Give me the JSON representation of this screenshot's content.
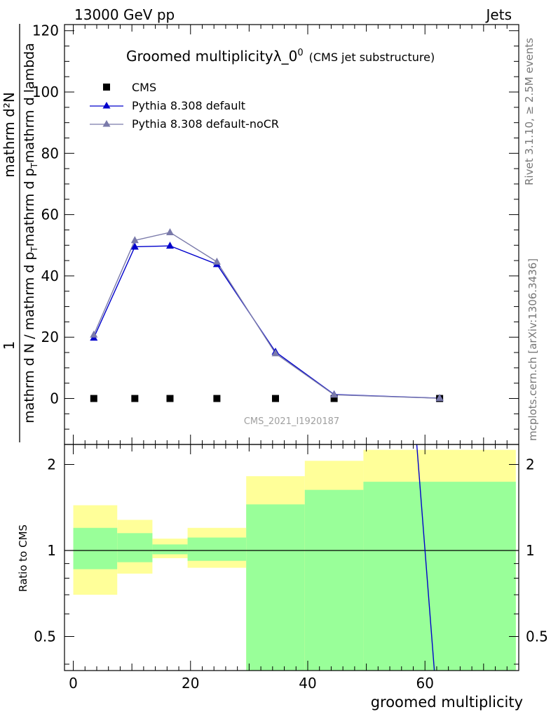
{
  "header": {
    "left": "13000 GeV pp",
    "right": "Jets",
    "side_top": "Rivet 3.1.10, ≥ 2.5M events",
    "side_bottom": "mcplots.cern.ch [arXiv:1306.3436]"
  },
  "main": {
    "title": "Groomed multiplicityλ_0",
    "title_sup": "0",
    "title_note": "(CMS jet substructure)",
    "ylabel_num_prefix": "1",
    "ylabel_num": "mathrm d²N",
    "ylabel_den": "mathrm d N / mathrm d p",
    "ylabel_den_sub": "T",
    "ylabel_den_mid": "mathrm d p",
    "ylabel_den_sub2": "T",
    "ylabel_den_end": "mathrm d lambda",
    "watermark": "CMS_2021_I1920187"
  },
  "ratio": {
    "ylabel": "Ratio to CMS",
    "xlabel": "groomed multiplicity"
  },
  "legend": [
    {
      "label": "CMS"
    },
    {
      "label": "Pythia 8.308 default"
    },
    {
      "label": "Pythia 8.308 default-noCR"
    }
  ],
  "chart_data": {
    "type": "line",
    "xlim": [
      -1.5,
      76
    ],
    "ylim": [
      -15,
      122
    ],
    "yticks": [
      0,
      20,
      40,
      60,
      80,
      100,
      120
    ],
    "xticks": [
      0,
      20,
      40,
      60
    ],
    "ratio_ylim": [
      0.38,
      2.35
    ],
    "ratio_yticks": [
      0.5,
      1,
      2
    ],
    "series": [
      {
        "name": "CMS",
        "color": "#000000",
        "marker": "square",
        "x": [
          3.5,
          10.5,
          16.5,
          24.5,
          34.5,
          44.5,
          62.5
        ],
        "y": [
          0,
          0,
          0,
          0,
          0,
          0,
          0
        ]
      },
      {
        "name": "Pythia 8.308 default",
        "color": "#0000cc",
        "marker": "triangle",
        "x": [
          3.5,
          10.5,
          16.5,
          24.5,
          34.5,
          44.5,
          62.5
        ],
        "y": [
          19.8,
          49.5,
          49.8,
          43.8,
          15.2,
          1.3,
          0.1
        ]
      },
      {
        "name": "Pythia 8.308 default-noCR",
        "color": "#7a7aaa",
        "marker": "triangle",
        "x": [
          3.5,
          10.5,
          16.5,
          24.5,
          34.5,
          44.5,
          62.5
        ],
        "y": [
          20.8,
          51.6,
          54.2,
          44.6,
          14.7,
          1.2,
          0.08
        ]
      }
    ],
    "bands": [
      {
        "x0": 0,
        "x1": 7.5,
        "inner": [
          0.86,
          1.2
        ],
        "outer": [
          0.7,
          1.44
        ]
      },
      {
        "x0": 7.5,
        "x1": 13.5,
        "inner": [
          0.91,
          1.15
        ],
        "outer": [
          0.83,
          1.28
        ]
      },
      {
        "x0": 13.5,
        "x1": 19.5,
        "inner": [
          0.97,
          1.05
        ],
        "outer": [
          0.94,
          1.1
        ]
      },
      {
        "x0": 19.5,
        "x1": 29.5,
        "inner": [
          0.92,
          1.11
        ],
        "outer": [
          0.87,
          1.2
        ]
      },
      {
        "x0": 29.5,
        "x1": 39.5,
        "inner": [
          0.38,
          1.45
        ],
        "outer": [
          0.38,
          1.82
        ]
      },
      {
        "x0": 39.5,
        "x1": 49.5,
        "inner": [
          0.38,
          1.63
        ],
        "outer": [
          0.38,
          2.06
        ]
      },
      {
        "x0": 49.5,
        "x1": 75.5,
        "inner": [
          0.38,
          1.74
        ],
        "outer": [
          0.38,
          2.25
        ]
      }
    ],
    "ratio_line": {
      "x": [
        58.6,
        61.6
      ],
      "y": [
        2.35,
        0.38
      ],
      "color": "#0000cc"
    }
  }
}
